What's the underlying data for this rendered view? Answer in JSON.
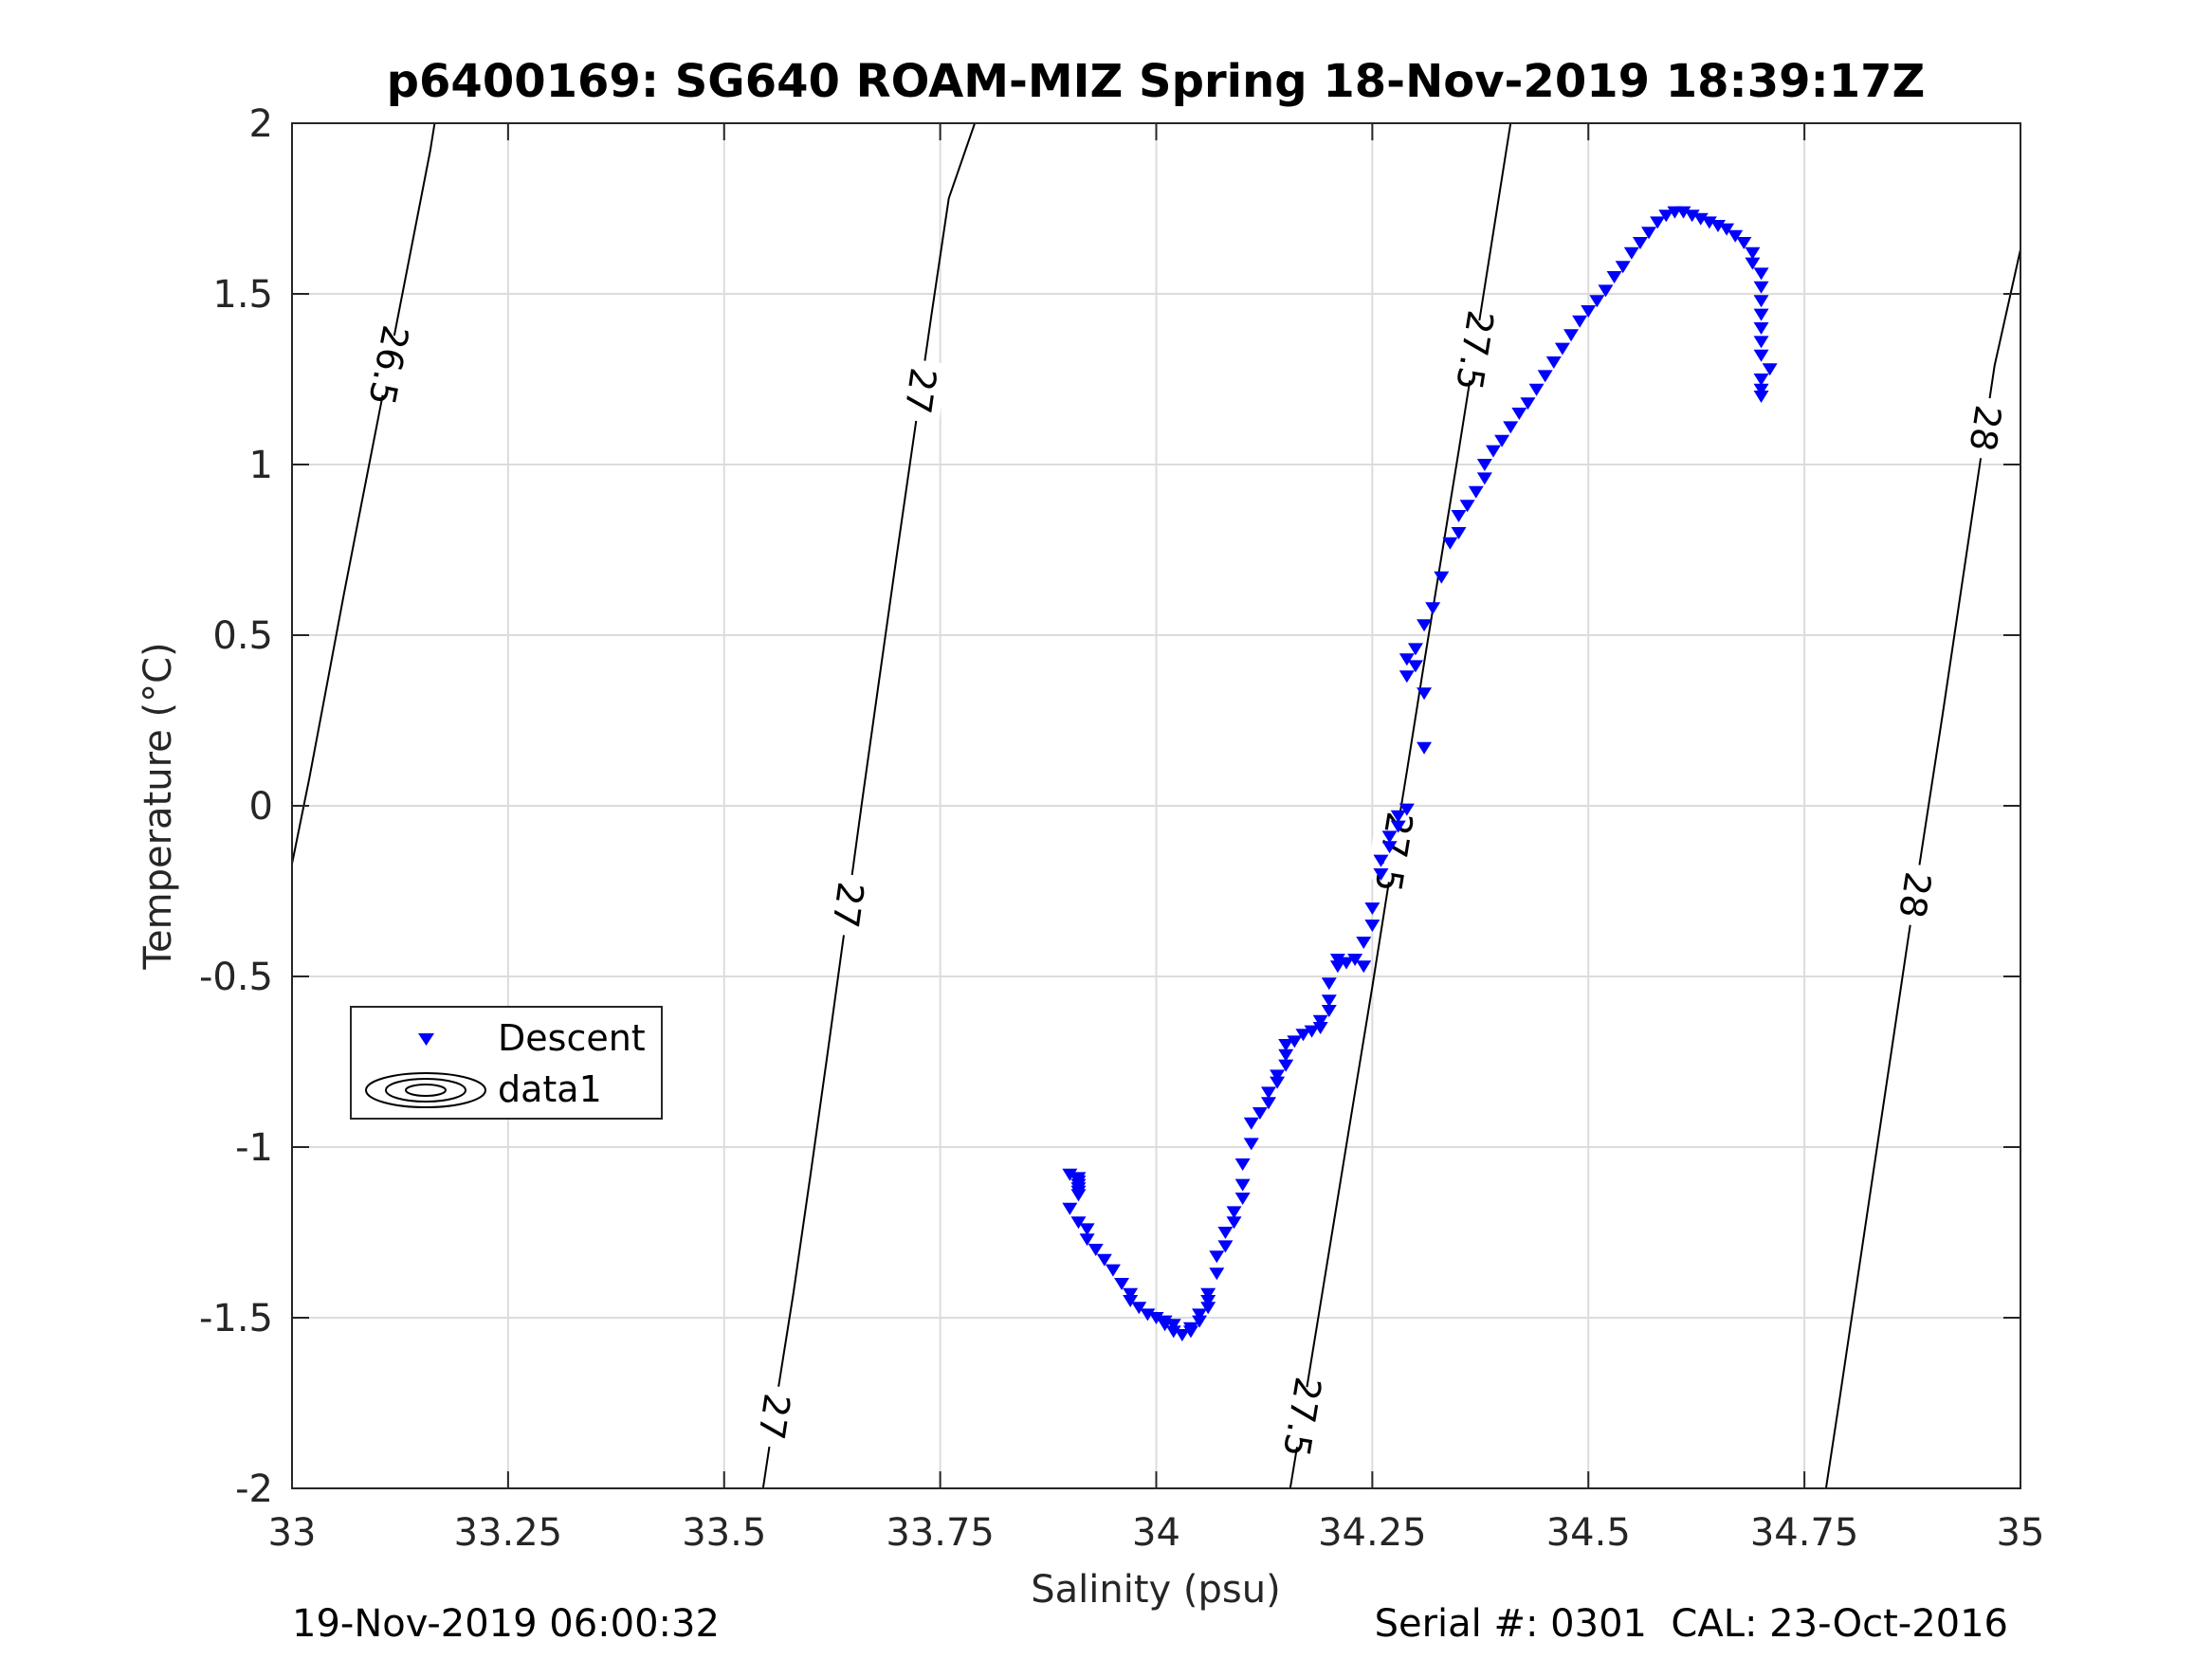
{
  "chart_data": {
    "type": "scatter",
    "title": "p6400169: SG640 ROAM-MIZ Spring 18-Nov-2019 18:39:17Z",
    "xlabel": "Salinity (psu)",
    "ylabel": "Temperature (°C)",
    "xlim": [
      33,
      35
    ],
    "ylim": [
      -2,
      2
    ],
    "xticks": [
      "33",
      "33.25",
      "33.5",
      "33.75",
      "34",
      "34.25",
      "34.5",
      "34.75",
      "35"
    ],
    "yticks": [
      "2",
      "1.5",
      "1",
      "0.5",
      "0",
      "-0.5",
      "-1",
      "-1.5",
      "-2"
    ],
    "grid": true,
    "legend": {
      "placement": "left-lower",
      "entries": [
        "Descent",
        "data1"
      ]
    },
    "series": [
      {
        "name": "Descent",
        "marker": "triangle-down",
        "color": "#0000ff",
        "points": [
          [
            33.9,
            -1.08
          ],
          [
            33.91,
            -1.09
          ],
          [
            33.91,
            -1.1
          ],
          [
            33.91,
            -1.12
          ],
          [
            33.91,
            -1.14
          ],
          [
            33.91,
            -1.13
          ],
          [
            33.91,
            -1.11
          ],
          [
            33.9,
            -1.18
          ],
          [
            33.91,
            -1.22
          ],
          [
            33.92,
            -1.24
          ],
          [
            33.92,
            -1.27
          ],
          [
            33.93,
            -1.3
          ],
          [
            33.94,
            -1.33
          ],
          [
            33.95,
            -1.36
          ],
          [
            33.96,
            -1.4
          ],
          [
            33.97,
            -1.43
          ],
          [
            33.97,
            -1.45
          ],
          [
            33.98,
            -1.47
          ],
          [
            33.99,
            -1.49
          ],
          [
            34.0,
            -1.5
          ],
          [
            34.01,
            -1.51
          ],
          [
            34.01,
            -1.52
          ],
          [
            34.02,
            -1.54
          ],
          [
            34.02,
            -1.52
          ],
          [
            34.03,
            -1.55
          ],
          [
            34.04,
            -1.54
          ],
          [
            34.04,
            -1.53
          ],
          [
            34.05,
            -1.51
          ],
          [
            34.05,
            -1.49
          ],
          [
            34.06,
            -1.47
          ],
          [
            34.06,
            -1.45
          ],
          [
            34.06,
            -1.43
          ],
          [
            34.07,
            -1.37
          ],
          [
            34.07,
            -1.32
          ],
          [
            34.08,
            -1.29
          ],
          [
            34.08,
            -1.25
          ],
          [
            34.09,
            -1.22
          ],
          [
            34.09,
            -1.19
          ],
          [
            34.1,
            -1.15
          ],
          [
            34.1,
            -1.11
          ],
          [
            34.1,
            -1.05
          ],
          [
            34.11,
            -0.99
          ],
          [
            34.11,
            -0.93
          ],
          [
            34.12,
            -0.9
          ],
          [
            34.13,
            -0.87
          ],
          [
            34.13,
            -0.84
          ],
          [
            34.14,
            -0.81
          ],
          [
            34.14,
            -0.79
          ],
          [
            34.15,
            -0.76
          ],
          [
            34.15,
            -0.73
          ],
          [
            34.15,
            -0.7
          ],
          [
            34.16,
            -0.69
          ],
          [
            34.17,
            -0.67
          ],
          [
            34.18,
            -0.66
          ],
          [
            34.19,
            -0.65
          ],
          [
            34.19,
            -0.63
          ],
          [
            34.2,
            -0.6
          ],
          [
            34.2,
            -0.57
          ],
          [
            34.2,
            -0.52
          ],
          [
            34.21,
            -0.47
          ],
          [
            34.21,
            -0.45
          ],
          [
            34.22,
            -0.46
          ],
          [
            34.23,
            -0.45
          ],
          [
            34.24,
            -0.47
          ],
          [
            34.24,
            -0.4
          ],
          [
            34.25,
            -0.35
          ],
          [
            34.25,
            -0.3
          ],
          [
            34.26,
            -0.2
          ],
          [
            34.26,
            -0.16
          ],
          [
            34.27,
            -0.12
          ],
          [
            34.27,
            -0.09
          ],
          [
            34.28,
            -0.06
          ],
          [
            34.28,
            -0.03
          ],
          [
            34.29,
            -0.01
          ],
          [
            34.31,
            0.17
          ],
          [
            34.31,
            0.33
          ],
          [
            34.29,
            0.38
          ],
          [
            34.3,
            0.41
          ],
          [
            34.29,
            0.43
          ],
          [
            34.3,
            0.46
          ],
          [
            34.31,
            0.53
          ],
          [
            34.32,
            0.58
          ],
          [
            34.33,
            0.67
          ],
          [
            34.34,
            0.77
          ],
          [
            34.35,
            0.8
          ],
          [
            34.35,
            0.85
          ],
          [
            34.36,
            0.88
          ],
          [
            34.37,
            0.92
          ],
          [
            34.38,
            0.96
          ],
          [
            34.38,
            1.0
          ],
          [
            34.39,
            1.04
          ],
          [
            34.4,
            1.07
          ],
          [
            34.41,
            1.11
          ],
          [
            34.42,
            1.15
          ],
          [
            34.43,
            1.18
          ],
          [
            34.44,
            1.22
          ],
          [
            34.45,
            1.26
          ],
          [
            34.46,
            1.3
          ],
          [
            34.47,
            1.34
          ],
          [
            34.48,
            1.38
          ],
          [
            34.49,
            1.42
          ],
          [
            34.5,
            1.45
          ],
          [
            34.51,
            1.48
          ],
          [
            34.52,
            1.51
          ],
          [
            34.53,
            1.55
          ],
          [
            34.54,
            1.58
          ],
          [
            34.55,
            1.62
          ],
          [
            34.56,
            1.65
          ],
          [
            34.57,
            1.68
          ],
          [
            34.58,
            1.71
          ],
          [
            34.59,
            1.73
          ],
          [
            34.6,
            1.74
          ],
          [
            34.61,
            1.74
          ],
          [
            34.62,
            1.73
          ],
          [
            34.63,
            1.72
          ],
          [
            34.64,
            1.71
          ],
          [
            34.65,
            1.7
          ],
          [
            34.66,
            1.69
          ],
          [
            34.67,
            1.67
          ],
          [
            34.68,
            1.65
          ],
          [
            34.69,
            1.62
          ],
          [
            34.69,
            1.59
          ],
          [
            34.7,
            1.56
          ],
          [
            34.7,
            1.52
          ],
          [
            34.7,
            1.48
          ],
          [
            34.7,
            1.44
          ],
          [
            34.7,
            1.4
          ],
          [
            34.7,
            1.36
          ],
          [
            34.7,
            1.32
          ],
          [
            34.71,
            1.28
          ],
          [
            34.7,
            1.25
          ],
          [
            34.7,
            1.22
          ],
          [
            34.7,
            1.2
          ]
        ]
      }
    ],
    "isopycnals": [
      {
        "sigma": 26.5,
        "labels": [
          "26.5"
        ],
        "points": [
          [
            33.0,
            -0.17
          ],
          [
            33.02,
            0.08
          ],
          [
            33.04,
            0.35
          ],
          [
            33.06,
            0.62
          ],
          [
            33.08,
            0.88
          ],
          [
            33.1,
            1.14
          ],
          [
            33.12,
            1.4
          ],
          [
            33.14,
            1.66
          ],
          [
            33.16,
            1.92
          ],
          [
            33.165,
            2.0
          ]
        ]
      },
      {
        "sigma": 27,
        "labels": [
          "27",
          "27",
          "27"
        ],
        "points": [
          [
            33.545,
            -2.0
          ],
          [
            33.56,
            -1.75
          ],
          [
            33.58,
            -1.43
          ],
          [
            33.6,
            -1.08
          ],
          [
            33.62,
            -0.72
          ],
          [
            33.64,
            -0.35
          ],
          [
            33.66,
            0.02
          ],
          [
            33.68,
            0.38
          ],
          [
            33.7,
            0.74
          ],
          [
            33.72,
            1.09
          ],
          [
            33.74,
            1.44
          ],
          [
            33.76,
            1.78
          ],
          [
            33.79,
            2.0
          ]
        ]
      },
      {
        "sigma": 27.5,
        "labels": [
          "27.5",
          "27.5",
          "27.5"
        ],
        "points": [
          [
            34.155,
            -2.0
          ],
          [
            34.17,
            -1.77
          ],
          [
            34.19,
            -1.46
          ],
          [
            34.21,
            -1.15
          ],
          [
            34.23,
            -0.84
          ],
          [
            34.25,
            -0.53
          ],
          [
            34.27,
            -0.21
          ],
          [
            34.29,
            0.1
          ],
          [
            34.31,
            0.42
          ],
          [
            34.33,
            0.73
          ],
          [
            34.35,
            1.04
          ],
          [
            34.37,
            1.36
          ],
          [
            34.39,
            1.68
          ],
          [
            34.41,
            2.0
          ]
        ]
      },
      {
        "sigma": 28,
        "labels": [
          "28",
          "28"
        ],
        "points": [
          [
            34.775,
            -2.0
          ],
          [
            34.79,
            -1.75
          ],
          [
            34.81,
            -1.41
          ],
          [
            34.83,
            -1.07
          ],
          [
            34.85,
            -0.73
          ],
          [
            34.87,
            -0.39
          ],
          [
            34.89,
            -0.06
          ],
          [
            34.91,
            0.27
          ],
          [
            34.93,
            0.61
          ],
          [
            34.95,
            0.95
          ],
          [
            34.97,
            1.29
          ],
          [
            35.0,
            1.63
          ]
        ]
      }
    ]
  },
  "footer": {
    "timestamp": "19-Nov-2019 06:00:32",
    "serial": "Serial #: 0301  CAL: 23-Oct-2016"
  }
}
